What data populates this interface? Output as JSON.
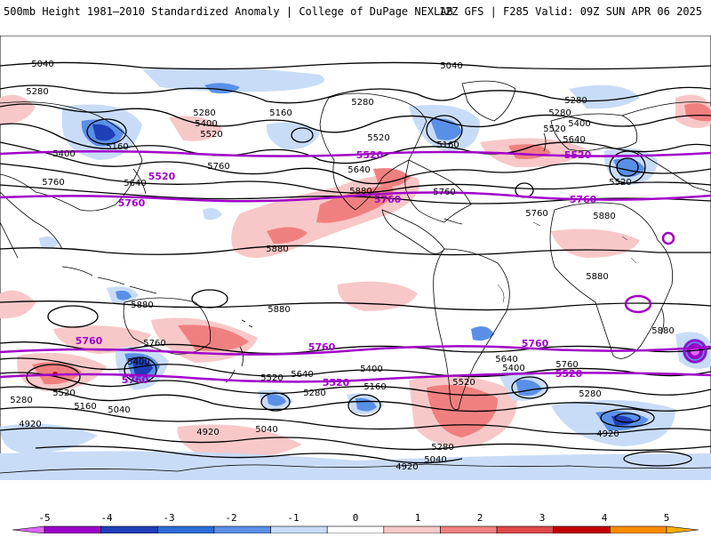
{
  "header": {
    "left_title": "500mb Height 1981–2010 Standardized Anomaly | College of DuPage NEXLAB",
    "right_title": "12Z GFS | F285 Valid: 09Z SUN APR 06 2025"
  },
  "colorbar": {
    "ticks": [
      "-5",
      "-4",
      "-3",
      "-2",
      "-1",
      "0",
      "1",
      "2",
      "3",
      "4",
      "5"
    ],
    "colors": [
      "#e066ff",
      "#9a00c8",
      "#1f3fb8",
      "#2c6cd8",
      "#5a8fe8",
      "#c8dcf8",
      "#ffffff",
      "#f8c8c8",
      "#f08080",
      "#e04848",
      "#c00000",
      "#ff8c00",
      "#ffb000"
    ]
  },
  "map": {
    "contours_black": [
      "5040",
      "5040",
      "5280",
      "5400",
      "5160",
      "5280",
      "5160",
      "5280",
      "5520",
      "5520",
      "5400",
      "5160",
      "5280",
      "5280",
      "5400",
      "5520",
      "5640",
      "5760",
      "5640",
      "5760",
      "5640",
      "5880",
      "5760",
      "5760",
      "5520",
      "5880",
      "5880",
      "5880",
      "5880",
      "5880",
      "5880",
      "5760",
      "5400",
      "5520",
      "5280",
      "5160",
      "5040",
      "4920",
      "5640",
      "5520",
      "5400",
      "5280",
      "5160",
      "5040",
      "4920",
      "5280",
      "5040",
      "4920",
      "5520",
      "5640",
      "5400",
      "5280",
      "4920",
      "5760"
    ],
    "contours_purple": [
      "5520",
      "5760",
      "5520",
      "5760",
      "5520",
      "5760",
      "5760",
      "5760",
      "5760",
      "5760",
      "5520",
      "5520",
      "5520"
    ]
  }
}
